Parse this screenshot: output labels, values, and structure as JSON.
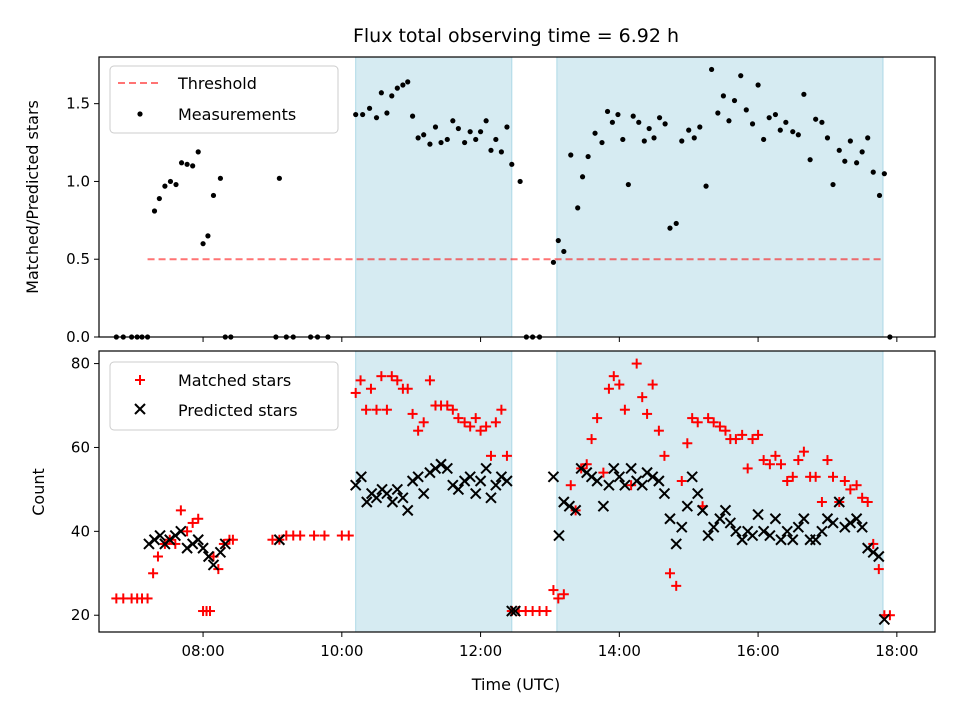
{
  "colors": {
    "shade": "#add8e6",
    "threshold": "#ff0000",
    "measurements": "#000000",
    "matched": "#ff0000",
    "predicted": "#000000"
  },
  "chart_data": [
    {
      "type": "scatter",
      "title": "Flux total observing time = 6.92 h",
      "xlabel": "",
      "ylabel": "Matched/Predicted stars",
      "xlim": [
        6.5,
        18.55
      ],
      "ylim": [
        0,
        1.8
      ],
      "yticks": [
        0,
        0.5,
        1.0,
        1.5
      ],
      "ytick_labels": [
        "0.0",
        "0.5",
        "1.0",
        "1.5"
      ],
      "shaded_intervals": [
        [
          10.2,
          12.45
        ],
        [
          13.1,
          17.8
        ]
      ],
      "legend": {
        "position": "upper-left",
        "entries": [
          "Threshold",
          "Measurements"
        ]
      },
      "threshold": {
        "name": "Threshold",
        "y": 0.5,
        "x_range": [
          7.2,
          17.8
        ],
        "style": "dashed"
      },
      "series": [
        {
          "name": "Measurements",
          "marker": "dot",
          "x": [
            6.75,
            6.85,
            6.97,
            7.05,
            7.12,
            7.2,
            7.3,
            7.37,
            7.45,
            7.53,
            7.61,
            7.69,
            7.77,
            7.85,
            7.93,
            8.0,
            8.07,
            8.15,
            8.25,
            8.32,
            8.4,
            9.05,
            9.1,
            9.2,
            9.3,
            9.55,
            9.65,
            9.8,
            10.2,
            10.3,
            10.4,
            10.5,
            10.57,
            10.65,
            10.72,
            10.8,
            10.88,
            10.95,
            11.02,
            11.1,
            11.18,
            11.27,
            11.35,
            11.43,
            11.52,
            11.6,
            11.68,
            11.77,
            11.85,
            11.93,
            12.0,
            12.08,
            12.15,
            12.22,
            12.3,
            12.38,
            12.45,
            12.57,
            12.66,
            12.75,
            12.85,
            13.05,
            13.12,
            13.2,
            13.3,
            13.4,
            13.47,
            13.55,
            13.65,
            13.75,
            13.83,
            13.9,
            13.98,
            14.05,
            14.13,
            14.2,
            14.28,
            14.36,
            14.43,
            14.5,
            14.58,
            14.66,
            14.73,
            14.82,
            14.9,
            15.0,
            15.08,
            15.16,
            15.25,
            15.33,
            15.42,
            15.5,
            15.58,
            15.66,
            15.75,
            15.83,
            15.92,
            16.0,
            16.08,
            16.16,
            16.25,
            16.32,
            16.4,
            16.5,
            16.58,
            16.66,
            16.75,
            16.83,
            16.92,
            17.0,
            17.08,
            17.17,
            17.25,
            17.33,
            17.42,
            17.5,
            17.58,
            17.66,
            17.75,
            17.82,
            17.9
          ],
          "y": [
            0,
            0,
            0,
            0,
            0,
            0,
            0.81,
            0.89,
            0.97,
            1.0,
            0.98,
            1.12,
            1.11,
            1.1,
            1.19,
            0.6,
            0.65,
            0.91,
            1.02,
            0,
            0,
            0,
            1.02,
            0,
            0,
            0,
            0,
            0,
            1.43,
            1.43,
            1.47,
            1.41,
            1.57,
            1.44,
            1.55,
            1.6,
            1.62,
            1.64,
            1.42,
            1.28,
            1.3,
            1.24,
            1.35,
            1.25,
            1.27,
            1.39,
            1.34,
            1.25,
            1.32,
            1.27,
            1.32,
            1.39,
            1.2,
            1.27,
            1.19,
            1.35,
            1.11,
            1.0,
            0,
            0,
            0,
            0.48,
            0.62,
            0.55,
            1.17,
            0.83,
            1.03,
            1.16,
            1.31,
            1.25,
            1.45,
            1.38,
            1.43,
            1.27,
            0.98,
            1.42,
            1.38,
            1.26,
            1.34,
            1.28,
            1.41,
            1.37,
            0.7,
            0.73,
            1.26,
            1.33,
            1.28,
            1.35,
            0.97,
            1.72,
            1.44,
            1.55,
            1.39,
            1.52,
            1.68,
            1.46,
            1.37,
            1.62,
            1.27,
            1.41,
            1.43,
            1.33,
            1.38,
            1.32,
            1.3,
            1.56,
            1.14,
            1.4,
            1.38,
            1.28,
            0.98,
            1.2,
            1.13,
            1.26,
            1.12,
            1.19,
            1.28,
            1.06,
            0.91,
            1.05,
            0
          ]
        }
      ]
    },
    {
      "type": "scatter",
      "title": "",
      "xlabel": "Time (UTC)",
      "ylabel": "Count",
      "xlim": [
        6.5,
        18.55
      ],
      "ylim": [
        16,
        83
      ],
      "yticks": [
        20,
        40,
        60,
        80
      ],
      "xticks": [
        8,
        10,
        12,
        14,
        16,
        18
      ],
      "xtick_labels": [
        "08:00",
        "10:00",
        "12:00",
        "14:00",
        "16:00",
        "18:00"
      ],
      "shaded_intervals": [
        [
          10.2,
          12.45
        ],
        [
          13.1,
          17.8
        ]
      ],
      "legend": {
        "position": "upper-left",
        "entries": [
          "Matched stars",
          "Predicted stars"
        ]
      },
      "series": [
        {
          "name": "Matched stars",
          "marker": "plus",
          "x": [
            6.75,
            6.85,
            6.97,
            7.05,
            7.12,
            7.2,
            7.28,
            7.35,
            7.45,
            7.52,
            7.6,
            7.68,
            7.77,
            7.85,
            7.93,
            8.0,
            8.05,
            8.1,
            8.15,
            8.22,
            8.3,
            8.38,
            8.43,
            9.0,
            9.1,
            9.2,
            9.3,
            9.4,
            9.6,
            9.75,
            10.0,
            10.1,
            10.2,
            10.27,
            10.35,
            10.42,
            10.5,
            10.57,
            10.65,
            10.72,
            10.8,
            10.88,
            10.95,
            11.02,
            11.1,
            11.18,
            11.27,
            11.35,
            11.43,
            11.52,
            11.6,
            11.68,
            11.77,
            11.85,
            11.93,
            12.0,
            12.08,
            12.15,
            12.22,
            12.3,
            12.38,
            12.45,
            12.55,
            12.65,
            12.75,
            12.85,
            12.95,
            13.05,
            13.12,
            13.2,
            13.3,
            13.37,
            13.45,
            13.53,
            13.6,
            13.68,
            13.77,
            13.85,
            13.92,
            14.0,
            14.08,
            14.17,
            14.25,
            14.33,
            14.4,
            14.48,
            14.57,
            14.65,
            14.73,
            14.82,
            14.9,
            14.98,
            15.05,
            15.13,
            15.2,
            15.28,
            15.36,
            15.45,
            15.53,
            15.6,
            15.68,
            15.77,
            15.85,
            15.92,
            16.0,
            16.08,
            16.17,
            16.25,
            16.33,
            16.42,
            16.5,
            16.58,
            16.66,
            16.75,
            16.83,
            16.92,
            17.0,
            17.08,
            17.17,
            17.25,
            17.33,
            17.42,
            17.5,
            17.58,
            17.66,
            17.74,
            17.82,
            17.9
          ],
          "y": [
            24,
            24,
            24,
            24,
            24,
            24,
            30,
            34,
            37,
            38,
            37,
            45,
            40,
            42,
            43,
            21,
            21,
            21,
            34,
            31,
            37,
            38,
            38,
            38,
            38,
            39,
            39,
            39,
            39,
            39,
            39,
            39,
            73,
            76,
            69,
            74,
            69,
            77,
            69,
            77,
            76,
            74,
            74,
            68,
            64,
            66,
            76,
            70,
            70,
            70,
            69,
            67,
            66,
            65,
            67,
            64,
            65,
            58,
            66,
            69,
            58,
            21,
            21,
            21,
            21,
            21,
            21,
            26,
            24,
            25,
            51,
            45,
            55,
            56,
            62,
            67,
            54,
            74,
            77,
            75,
            69,
            51,
            80,
            72,
            68,
            75,
            64,
            58,
            30,
            27,
            52,
            61,
            67,
            66,
            46,
            67,
            66,
            65,
            64,
            62,
            62,
            63,
            55,
            62,
            63,
            57,
            56,
            58,
            56,
            52,
            53,
            57,
            59,
            53,
            53,
            47,
            57,
            53,
            47,
            52,
            50,
            51,
            48,
            47,
            37,
            31,
            20,
            20
          ]
        },
        {
          "name": "Predicted stars",
          "marker": "x",
          "x": [
            7.22,
            7.3,
            7.38,
            7.45,
            7.52,
            7.6,
            7.68,
            7.77,
            7.85,
            7.93,
            8.0,
            8.08,
            8.15,
            8.25,
            8.32,
            9.1,
            10.2,
            10.28,
            10.36,
            10.43,
            10.5,
            10.58,
            10.65,
            10.73,
            10.8,
            10.88,
            10.95,
            11.02,
            11.1,
            11.18,
            11.27,
            11.35,
            11.43,
            11.52,
            11.6,
            11.68,
            11.77,
            11.85,
            11.93,
            12.0,
            12.08,
            12.15,
            12.22,
            12.3,
            12.38,
            12.45,
            12.5,
            13.05,
            13.13,
            13.2,
            13.28,
            13.37,
            13.45,
            13.53,
            13.6,
            13.68,
            13.77,
            13.85,
            13.92,
            14.0,
            14.08,
            14.17,
            14.25,
            14.33,
            14.4,
            14.48,
            14.57,
            14.65,
            14.73,
            14.82,
            14.9,
            14.98,
            15.05,
            15.13,
            15.2,
            15.28,
            15.36,
            15.45,
            15.53,
            15.6,
            15.68,
            15.77,
            15.85,
            15.92,
            16.0,
            16.08,
            16.17,
            16.25,
            16.33,
            16.42,
            16.5,
            16.58,
            16.66,
            16.75,
            16.83,
            16.92,
            17.0,
            17.08,
            17.17,
            17.25,
            17.33,
            17.42,
            17.5,
            17.58,
            17.66,
            17.74,
            17.82
          ],
          "y": [
            37,
            38,
            39,
            37,
            38,
            39,
            40,
            36,
            37,
            38,
            36,
            34,
            32,
            35,
            37,
            38,
            51,
            53,
            47,
            49,
            48,
            50,
            49,
            47,
            50,
            48,
            45,
            52,
            53,
            49,
            54,
            55,
            56,
            55,
            51,
            50,
            52,
            53,
            49,
            52,
            55,
            48,
            51,
            53,
            52,
            21,
            21,
            53,
            39,
            47,
            46,
            45,
            55,
            54,
            53,
            52,
            46,
            51,
            55,
            53,
            51,
            55,
            52,
            51,
            54,
            53,
            52,
            49,
            43,
            37,
            41,
            46,
            53,
            49,
            45,
            39,
            41,
            43,
            45,
            42,
            40,
            38,
            40,
            39,
            44,
            40,
            39,
            43,
            38,
            40,
            38,
            41,
            43,
            38,
            38,
            40,
            43,
            42,
            47,
            41,
            42,
            43,
            41,
            36,
            35,
            34,
            19
          ]
        }
      ]
    }
  ]
}
